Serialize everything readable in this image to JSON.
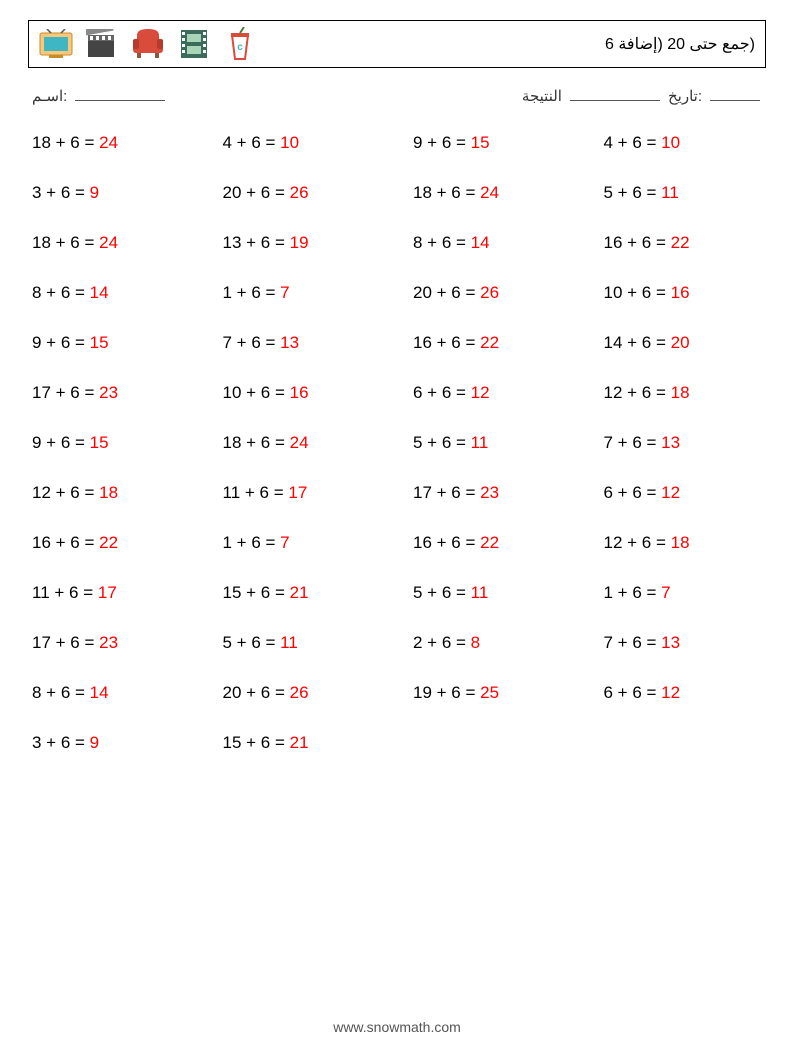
{
  "title": "(جمع حتى 20 (إضافة 6",
  "labels": {
    "name": "اسـم:",
    "score": "النتيجة",
    "date": "تاريخ:"
  },
  "footer": "www.snowmath.com",
  "colors": {
    "answer": "#ff0000",
    "text": "#000000",
    "border": "#000000",
    "footer": "#555555"
  },
  "icons": [
    {
      "name": "tv-icon",
      "bg": "#f9c87a",
      "fg": "#3eb6c4"
    },
    {
      "name": "clapper-icon",
      "bg": "#ffffff",
      "fg": "#333333"
    },
    {
      "name": "sofa-icon",
      "bg": "#ffffff",
      "fg": "#d94c3c"
    },
    {
      "name": "film-icon",
      "bg": "#ffffff",
      "fg": "#3b6b5a"
    },
    {
      "name": "cup-icon",
      "bg": "#ffffff",
      "fg": "#d94c3c"
    }
  ],
  "problems": {
    "columns": 4,
    "rows": 13,
    "font_size": 17,
    "items": [
      {
        "a": 18,
        "b": 6,
        "r": 24
      },
      {
        "a": 4,
        "b": 6,
        "r": 10
      },
      {
        "a": 9,
        "b": 6,
        "r": 15
      },
      {
        "a": 4,
        "b": 6,
        "r": 10
      },
      {
        "a": 3,
        "b": 6,
        "r": 9
      },
      {
        "a": 20,
        "b": 6,
        "r": 26
      },
      {
        "a": 18,
        "b": 6,
        "r": 24
      },
      {
        "a": 5,
        "b": 6,
        "r": 11
      },
      {
        "a": 18,
        "b": 6,
        "r": 24
      },
      {
        "a": 13,
        "b": 6,
        "r": 19
      },
      {
        "a": 8,
        "b": 6,
        "r": 14
      },
      {
        "a": 16,
        "b": 6,
        "r": 22
      },
      {
        "a": 8,
        "b": 6,
        "r": 14
      },
      {
        "a": 1,
        "b": 6,
        "r": 7
      },
      {
        "a": 20,
        "b": 6,
        "r": 26
      },
      {
        "a": 10,
        "b": 6,
        "r": 16
      },
      {
        "a": 9,
        "b": 6,
        "r": 15
      },
      {
        "a": 7,
        "b": 6,
        "r": 13
      },
      {
        "a": 16,
        "b": 6,
        "r": 22
      },
      {
        "a": 14,
        "b": 6,
        "r": 20
      },
      {
        "a": 17,
        "b": 6,
        "r": 23
      },
      {
        "a": 10,
        "b": 6,
        "r": 16
      },
      {
        "a": 6,
        "b": 6,
        "r": 12
      },
      {
        "a": 12,
        "b": 6,
        "r": 18
      },
      {
        "a": 9,
        "b": 6,
        "r": 15
      },
      {
        "a": 18,
        "b": 6,
        "r": 24
      },
      {
        "a": 5,
        "b": 6,
        "r": 11
      },
      {
        "a": 7,
        "b": 6,
        "r": 13
      },
      {
        "a": 12,
        "b": 6,
        "r": 18
      },
      {
        "a": 11,
        "b": 6,
        "r": 17
      },
      {
        "a": 17,
        "b": 6,
        "r": 23
      },
      {
        "a": 6,
        "b": 6,
        "r": 12
      },
      {
        "a": 16,
        "b": 6,
        "r": 22
      },
      {
        "a": 1,
        "b": 6,
        "r": 7
      },
      {
        "a": 16,
        "b": 6,
        "r": 22
      },
      {
        "a": 12,
        "b": 6,
        "r": 18
      },
      {
        "a": 11,
        "b": 6,
        "r": 17
      },
      {
        "a": 15,
        "b": 6,
        "r": 21
      },
      {
        "a": 5,
        "b": 6,
        "r": 11
      },
      {
        "a": 1,
        "b": 6,
        "r": 7
      },
      {
        "a": 17,
        "b": 6,
        "r": 23
      },
      {
        "a": 5,
        "b": 6,
        "r": 11
      },
      {
        "a": 2,
        "b": 6,
        "r": 8
      },
      {
        "a": 7,
        "b": 6,
        "r": 13
      },
      {
        "a": 8,
        "b": 6,
        "r": 14
      },
      {
        "a": 20,
        "b": 6,
        "r": 26
      },
      {
        "a": 19,
        "b": 6,
        "r": 25
      },
      {
        "a": 6,
        "b": 6,
        "r": 12
      },
      {
        "a": 3,
        "b": 6,
        "r": 9
      },
      {
        "a": 15,
        "b": 6,
        "r": 21
      }
    ]
  }
}
